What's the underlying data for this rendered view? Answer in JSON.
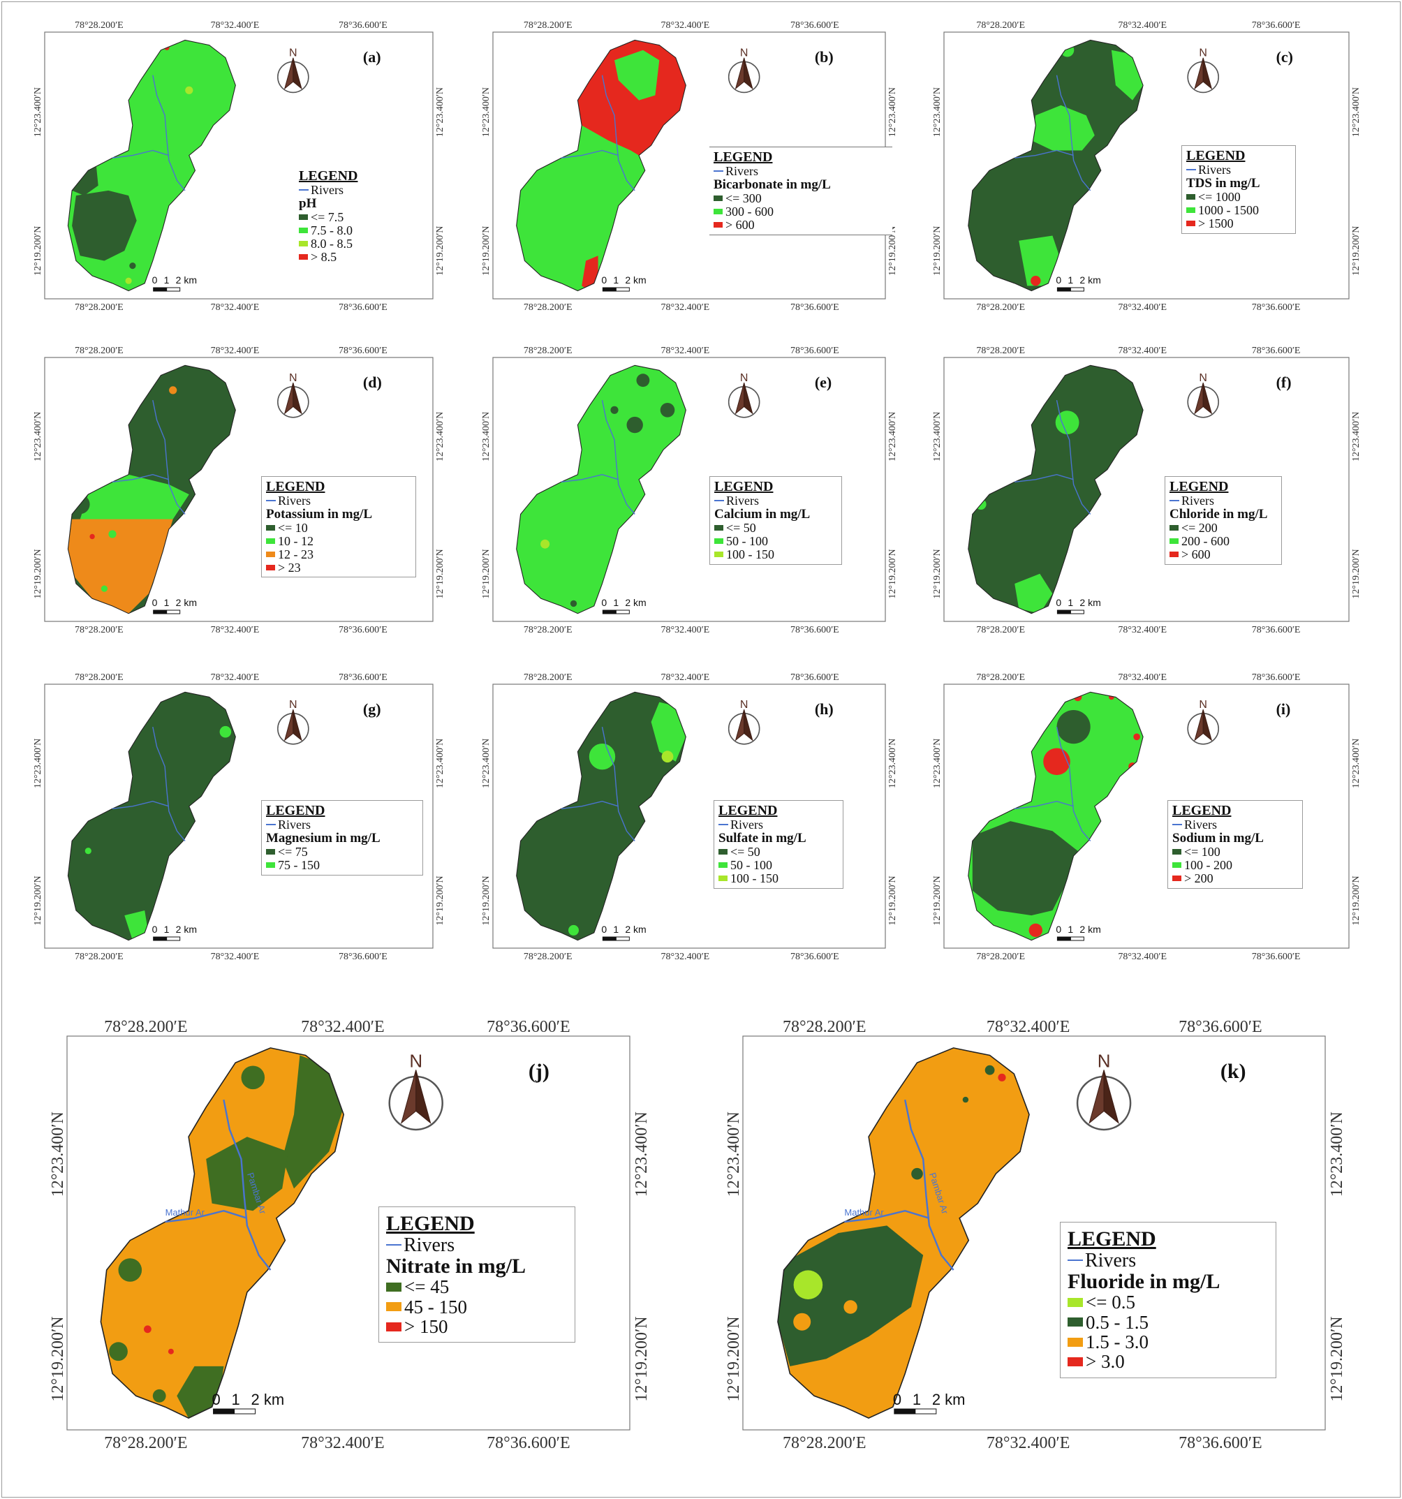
{
  "colors": {
    "dark_green": "#2e5e2e",
    "bright_green": "#3ee43a",
    "yellow_green": "#a8e62a",
    "red": "#e5281e",
    "orange": "#ee8a1a",
    "amber": "#f29d12",
    "olive_green": "#3f6e22",
    "river": "#4a74d0"
  },
  "coords": {
    "lon1": "78°28.200′E",
    "lon2": "78°32.400′E",
    "lon3": "78°36.600′E",
    "lat1": "12°23.400′N",
    "lat2": "12°19.200′N"
  },
  "common": {
    "legend_title": "LEGEND",
    "rivers_label": "Rivers",
    "north": "N",
    "scale": {
      "zero": "0",
      "one": "1",
      "two": "2 km"
    }
  },
  "river_names": {
    "mathur": "Mathur Ar",
    "pambar": "Pambar Ar"
  },
  "panels": [
    {
      "id": "a",
      "label": "(a)",
      "param": "pH",
      "classes": [
        {
          "label": "<= 7.5",
          "color": "#2e5e2e"
        },
        {
          "label": "7.5 - 8.0",
          "color": "#3ee43a"
        },
        {
          "label": "8.0 - 8.5",
          "color": "#a8e62a"
        },
        {
          "label": "> 8.5",
          "color": "#e5281e"
        }
      ]
    },
    {
      "id": "b",
      "label": "(b)",
      "param": "Bicarbonate in mg/L",
      "classes": [
        {
          "label": "<= 300",
          "color": "#2e5e2e"
        },
        {
          "label": "300 - 600",
          "color": "#3ee43a"
        },
        {
          "label": "> 600",
          "color": "#e5281e"
        }
      ]
    },
    {
      "id": "c",
      "label": "(c)",
      "param": "TDS in mg/L",
      "classes": [
        {
          "label": "<= 1000",
          "color": "#2e5e2e"
        },
        {
          "label": "1000 - 1500",
          "color": "#3ee43a"
        },
        {
          "label": "> 1500",
          "color": "#e5281e"
        }
      ]
    },
    {
      "id": "d",
      "label": "(d)",
      "param": "Potassium in mg/L",
      "classes": [
        {
          "label": "<= 10",
          "color": "#2e5e2e"
        },
        {
          "label": "10 - 12",
          "color": "#3ee43a"
        },
        {
          "label": "12 - 23",
          "color": "#ee8a1a"
        },
        {
          "label": "> 23",
          "color": "#e5281e"
        }
      ]
    },
    {
      "id": "e",
      "label": "(e)",
      "param": "Calcium in mg/L",
      "classes": [
        {
          "label": "<= 50",
          "color": "#2e5e2e"
        },
        {
          "label": "50 - 100",
          "color": "#3ee43a"
        },
        {
          "label": "100 - 150",
          "color": "#a8e62a"
        }
      ]
    },
    {
      "id": "f",
      "label": "(f)",
      "param": "Chloride in mg/L",
      "classes": [
        {
          "label": "<= 200",
          "color": "#2e5e2e"
        },
        {
          "label": "200 - 600",
          "color": "#3ee43a"
        },
        {
          "label": "> 600",
          "color": "#e5281e"
        }
      ]
    },
    {
      "id": "g",
      "label": "(g)",
      "param": "Magnesium in mg/L",
      "classes": [
        {
          "label": "<= 75",
          "color": "#2e5e2e"
        },
        {
          "label": "75 - 150",
          "color": "#3ee43a"
        }
      ]
    },
    {
      "id": "h",
      "label": "(h)",
      "param": "Sulfate in mg/L",
      "classes": [
        {
          "label": "<= 50",
          "color": "#2e5e2e"
        },
        {
          "label": "50 - 100",
          "color": "#3ee43a"
        },
        {
          "label": "100 - 150",
          "color": "#a8e62a"
        }
      ]
    },
    {
      "id": "i",
      "label": "(i)",
      "param": "Sodium in mg/L",
      "classes": [
        {
          "label": "<= 100",
          "color": "#2e5e2e"
        },
        {
          "label": "100 - 200",
          "color": "#3ee43a"
        },
        {
          "label": "> 200",
          "color": "#e5281e"
        }
      ]
    },
    {
      "id": "j",
      "label": "(j)",
      "param": "Nitrate in mg/L",
      "classes": [
        {
          "label": "<= 45",
          "color": "#3f6e22"
        },
        {
          "label": "45 - 150",
          "color": "#f29d12"
        },
        {
          "label": "> 150",
          "color": "#e5281e"
        }
      ]
    },
    {
      "id": "k",
      "label": "(k)",
      "param": "Fluoride in mg/L",
      "classes": [
        {
          "label": "<= 0.5",
          "color": "#a8e62a"
        },
        {
          "label": "0.5 - 1.5",
          "color": "#2e5e2e"
        },
        {
          "label": "1.5 - 3.0",
          "color": "#f29d12"
        },
        {
          "label": "> 3.0",
          "color": "#e5281e"
        }
      ]
    }
  ]
}
